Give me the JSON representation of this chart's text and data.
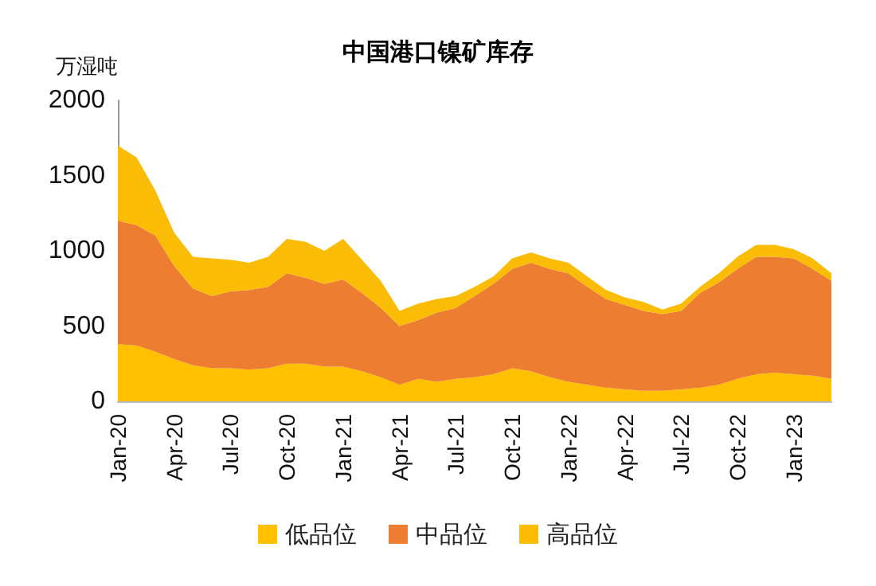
{
  "chart_data": {
    "type": "area",
    "stacked": true,
    "title": "中国港口镍矿库存",
    "ylabel": "万湿吨",
    "categories": [
      "Jan-20",
      null,
      null,
      "Apr-20",
      null,
      null,
      "Jul-20",
      null,
      null,
      "Oct-20",
      null,
      null,
      "Jan-21",
      null,
      null,
      "Apr-21",
      null,
      null,
      "Jul-21",
      null,
      null,
      "Oct-21",
      null,
      null,
      "Jan-22",
      null,
      null,
      "Apr-22",
      null,
      null,
      "Jul-22",
      null,
      null,
      "Oct-22",
      null,
      null,
      "Jan-23",
      null,
      null
    ],
    "series": [
      {
        "name": "低品位",
        "color": "#ffc000",
        "values": [
          380,
          370,
          330,
          280,
          240,
          220,
          220,
          210,
          220,
          250,
          250,
          230,
          230,
          200,
          160,
          110,
          150,
          130,
          150,
          160,
          180,
          220,
          200,
          160,
          130,
          110,
          90,
          80,
          70,
          70,
          80,
          90,
          110,
          150,
          180,
          190,
          180,
          170,
          150
        ]
      },
      {
        "name": "中品位",
        "color": "#ed7d31",
        "values": [
          820,
          800,
          770,
          620,
          510,
          480,
          510,
          530,
          540,
          600,
          570,
          550,
          580,
          520,
          460,
          390,
          390,
          460,
          470,
          540,
          600,
          660,
          720,
          720,
          720,
          650,
          590,
          560,
          530,
          510,
          520,
          630,
          680,
          730,
          780,
          770,
          770,
          710,
          650
        ]
      },
      {
        "name": "高品位",
        "color": "#fbbc05",
        "values": [
          500,
          450,
          300,
          220,
          210,
          250,
          210,
          180,
          200,
          230,
          240,
          220,
          270,
          220,
          180,
          100,
          110,
          90,
          80,
          60,
          50,
          70,
          70,
          70,
          70,
          70,
          60,
          50,
          60,
          30,
          50,
          40,
          60,
          80,
          80,
          80,
          60,
          70,
          50
        ]
      }
    ],
    "ylim": [
      0,
      2000
    ],
    "yticks": [
      0,
      500,
      1000,
      1500,
      2000
    ],
    "grid": false,
    "legend": "bottom"
  }
}
